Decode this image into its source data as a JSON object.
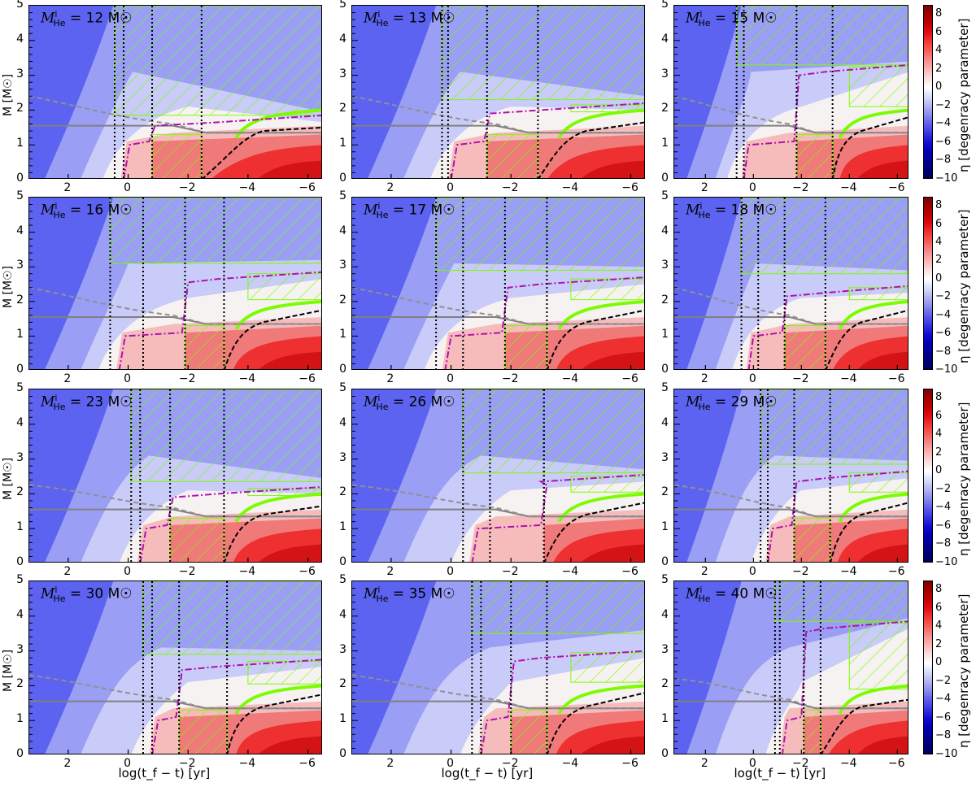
{
  "chart_data": {
    "type": "heatmap",
    "title": "",
    "layout": {
      "rows": 4,
      "cols": 3,
      "shared_colorbar_per_row": true
    },
    "xlabel": "log(t_f − t) [yr]",
    "ylabel": "M [M☉]",
    "xlim": [
      3.3,
      -6.5
    ],
    "ylim": [
      0,
      5
    ],
    "xticks": [
      2,
      0,
      -2,
      -4,
      -6
    ],
    "yticks": [
      0,
      1,
      2,
      3,
      4,
      5
    ],
    "colorbar": {
      "label": "η [degenracy parameter]",
      "ticks": [
        8,
        6,
        4,
        2,
        0,
        -2,
        -4,
        -6,
        -8,
        -10
      ],
      "range": [
        -10,
        9
      ],
      "colormap": "seismic (blue-white-red)"
    },
    "legend_lines": [
      {
        "style": "dotted black vertical",
        "meaning": "phase boundaries"
      },
      {
        "style": "solid gray",
        "meaning": "horizontal reference ~1.55 M☉"
      },
      {
        "style": "dashed gray",
        "meaning": "descending mass coordinate"
      },
      {
        "style": "dash-dot magenta",
        "meaning": "boundary curve"
      },
      {
        "style": "dashed black",
        "meaning": "degeneracy front"
      },
      {
        "style": "green hatched",
        "meaning": "convective regions"
      }
    ],
    "panels": [
      {
        "label_prefix": "M",
        "sub": "He",
        "sup": "i",
        "value": "12",
        "unit": "M☉",
        "vlines": [
          0.45,
          0.15,
          -0.8,
          -2.45
        ],
        "gray_dashed_start": 2.4,
        "solid_gray": 1.55,
        "final_gray": 1.35,
        "black_dash_end": 1.5,
        "magenta_top": 1.85,
        "conv_top_shell": 1.85
      },
      {
        "label_prefix": "M",
        "sub": "He",
        "sup": "i",
        "value": "13",
        "unit": "M☉",
        "vlines": [
          0.3,
          0.1,
          -1.2,
          -2.9
        ],
        "gray_dashed_start": 2.4,
        "solid_gray": 1.55,
        "final_gray": 1.35,
        "black_dash_end": 1.65,
        "magenta_top": 2.2,
        "conv_top_shell": 2.3
      },
      {
        "label_prefix": "M",
        "sub": "He",
        "sup": "i",
        "value": "15",
        "unit": "M☉",
        "vlines": [
          0.7,
          0.4,
          -1.8,
          -3.3
        ],
        "gray_dashed_start": 2.4,
        "solid_gray": 1.55,
        "final_gray": 1.35,
        "black_dash_end": 1.8,
        "magenta_top": 3.3,
        "conv_top_shell": 3.3
      },
      {
        "label_prefix": "M",
        "sub": "He",
        "sup": "i",
        "value": "16",
        "unit": "M☉",
        "vlines": [
          0.6,
          -0.5,
          -1.9,
          -3.2
        ],
        "gray_dashed_start": 2.4,
        "solid_gray": 1.55,
        "final_gray": 1.35,
        "black_dash_end": 1.75,
        "magenta_top": 2.85,
        "conv_top_shell": 3.1
      },
      {
        "label_prefix": "M",
        "sub": "He",
        "sup": "i",
        "value": "17",
        "unit": "M☉",
        "vlines": [
          0.5,
          -0.4,
          -1.8,
          -3.2
        ],
        "gray_dashed_start": 2.4,
        "solid_gray": 1.55,
        "final_gray": 1.35,
        "black_dash_end": 1.75,
        "magenta_top": 2.7,
        "conv_top_shell": 2.9
      },
      {
        "label_prefix": "M",
        "sub": "He",
        "sup": "i",
        "value": "18",
        "unit": "M☉",
        "vlines": [
          0.5,
          -0.2,
          -1.3,
          -3.0
        ],
        "gray_dashed_start": 2.4,
        "solid_gray": 1.55,
        "final_gray": 1.35,
        "black_dash_end": 1.75,
        "magenta_top": 2.45,
        "conv_top_shell": 2.8
      },
      {
        "label_prefix": "M",
        "sub": "He",
        "sup": "i",
        "value": "23",
        "unit": "M☉",
        "vlines": [
          -0.1,
          -0.4,
          -1.4,
          -3.2
        ],
        "gray_dashed_start": 2.25,
        "solid_gray": 1.55,
        "final_gray": 1.35,
        "black_dash_end": 1.65,
        "magenta_top": 2.2,
        "conv_top_shell": 2.35
      },
      {
        "label_prefix": "M",
        "sub": "He",
        "sup": "i",
        "value": "26",
        "unit": "M☉",
        "vlines": [
          -0.4,
          -1.3,
          -3.1,
          -3.1
        ],
        "gray_dashed_start": 2.25,
        "solid_gray": 1.55,
        "final_gray": 1.35,
        "black_dash_end": 1.75,
        "magenta_top": 2.55,
        "conv_top_shell": 2.6
      },
      {
        "label_prefix": "M",
        "sub": "He",
        "sup": "i",
        "value": "29",
        "unit": "M☉",
        "vlines": [
          -0.3,
          -0.6,
          -1.7,
          -3.2
        ],
        "gray_dashed_start": 2.25,
        "solid_gray": 1.55,
        "final_gray": 1.35,
        "black_dash_end": 1.75,
        "magenta_top": 2.65,
        "conv_top_shell": 2.85
      },
      {
        "label_prefix": "M",
        "sub": "He",
        "sup": "i",
        "value": "30",
        "unit": "M☉",
        "vlines": [
          -0.5,
          -0.8,
          -1.7,
          -3.3
        ],
        "gray_dashed_start": 2.3,
        "solid_gray": 1.55,
        "final_gray": 1.35,
        "black_dash_end": 1.75,
        "magenta_top": 2.75,
        "conv_top_shell": 2.9
      },
      {
        "label_prefix": "M",
        "sub": "He",
        "sup": "i",
        "value": "35",
        "unit": "M☉",
        "vlines": [
          -0.7,
          -1.0,
          -2.0,
          -3.2
        ],
        "gray_dashed_start": 2.3,
        "solid_gray": 1.55,
        "final_gray": 1.35,
        "black_dash_end": 1.8,
        "magenta_top": 3.0,
        "conv_top_shell": 3.5
      },
      {
        "label_prefix": "M",
        "sub": "He",
        "sup": "i",
        "value": "40",
        "unit": "M☉",
        "vlines": [
          -0.9,
          -1.1,
          -2.1,
          -2.8
        ],
        "gray_dashed_start": 2.2,
        "solid_gray": 1.55,
        "final_gray": 1.35,
        "black_dash_end": 1.6,
        "magenta_top": 3.85,
        "conv_top_shell": 3.85
      }
    ]
  }
}
